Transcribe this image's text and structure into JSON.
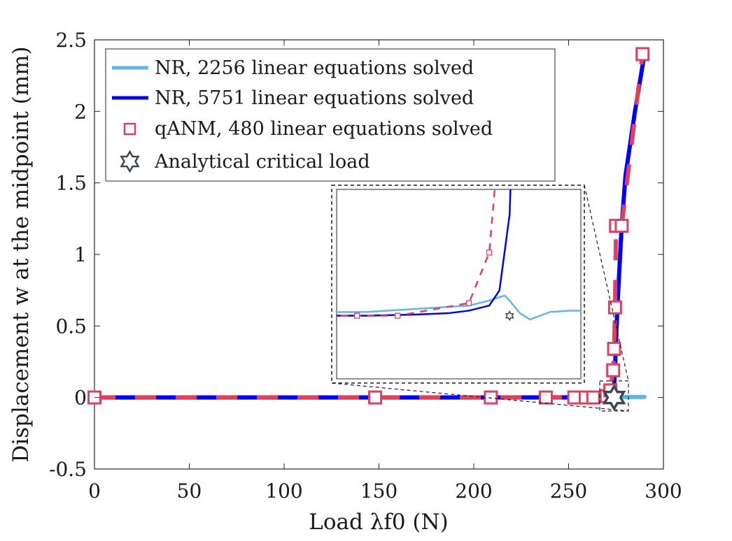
{
  "chart_data": {
    "type": "line",
    "title": "",
    "xlabel": "Load λf0 (N)",
    "ylabel": "Displacement w at the midpoint (mm)",
    "xlim": [
      0,
      300
    ],
    "ylim": [
      -0.5,
      2.5
    ],
    "xticks": [
      0,
      50,
      100,
      150,
      200,
      250,
      300
    ],
    "yticks": [
      -0.5,
      0,
      0.5,
      1,
      1.5,
      2,
      2.5
    ],
    "xtick_labels": [
      "0",
      "50",
      "100",
      "150",
      "200",
      "250",
      "300"
    ],
    "ytick_labels": [
      "-0.5",
      "0",
      "0.5",
      "1",
      "1.5",
      "2",
      "2.5"
    ],
    "grid": false,
    "legend_position": "top-left",
    "series": [
      {
        "name": "NR, 2256 linear equations solved",
        "color": "#5DB7E8",
        "style": "solid",
        "x": [
          0,
          50,
          100,
          150,
          200,
          260,
          270,
          272,
          273.5,
          274,
          275,
          276,
          278,
          280,
          282,
          285,
          290
        ],
        "y": [
          0,
          0,
          0,
          0,
          0,
          0.003,
          0.008,
          0.012,
          0.016,
          0.012,
          0.002,
          -0.003,
          0.003,
          0.004,
          0.004,
          0.004,
          0.004
        ]
      },
      {
        "name": "NR, 5751 linear equations solved",
        "color": "#0000FF",
        "style": "solid",
        "x": [
          0,
          50,
          100,
          150,
          200,
          230,
          250,
          260,
          265,
          268,
          270,
          272,
          273,
          274,
          274.5,
          275,
          276,
          278,
          280,
          285,
          290
        ],
        "y": [
          0,
          0,
          0,
          0,
          0,
          0,
          0,
          0,
          0.001,
          0.002,
          0.004,
          0.008,
          0.02,
          0.08,
          0.2,
          0.4,
          0.7,
          1.2,
          1.55,
          2.0,
          2.4
        ]
      },
      {
        "name": "qANM, 480 linear equations solved",
        "color": "#E0405E",
        "style": "markers",
        "marker": "square",
        "x": [
          0,
          148,
          209,
          238,
          253,
          259,
          263,
          270,
          272,
          273.5,
          274,
          274.5,
          275,
          278,
          289
        ],
        "y": [
          0,
          0,
          0,
          0,
          0,
          0,
          0,
          0.01,
          0.05,
          0.19,
          0.34,
          0.63,
          1.2,
          1.2,
          2.4
        ]
      },
      {
        "name": "Analytical critical load",
        "color": "#3D4754",
        "style": "marker",
        "marker": "hexagram",
        "x": [
          274
        ],
        "y": [
          0
        ]
      }
    ],
    "inset": {
      "description": "zoom near critical load",
      "x_range": [
        257,
        281
      ],
      "y_range": [
        -0.05,
        0.1
      ]
    }
  },
  "legend": {
    "items": [
      "NR, 2256 linear equations solved",
      "NR, 5751 linear equations solved",
      "qANM, 480 linear equations solved",
      "Analytical critical load"
    ]
  }
}
